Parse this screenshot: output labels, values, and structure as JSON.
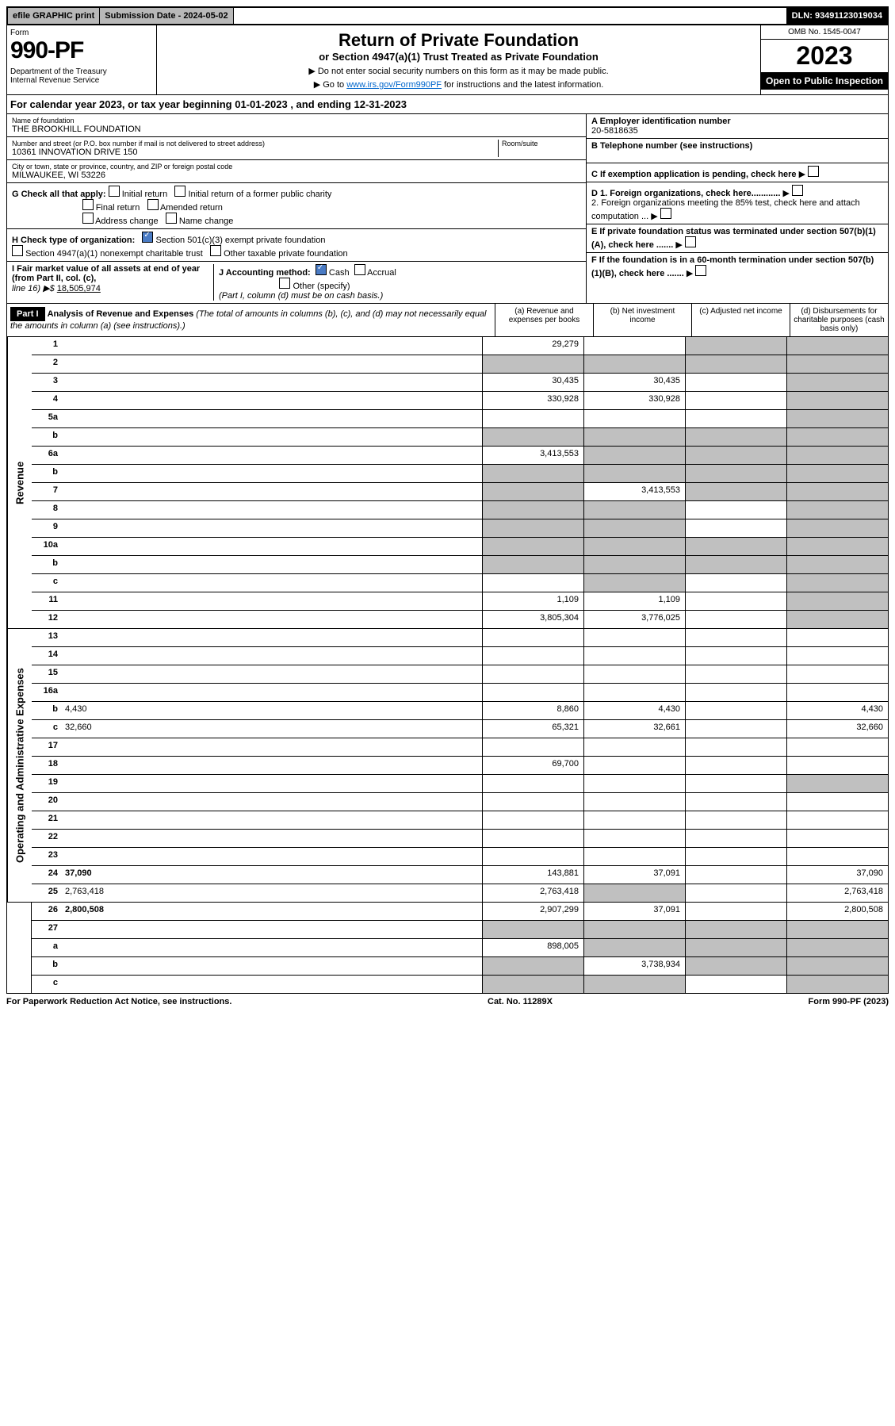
{
  "topbar": {
    "efile": "efile GRAPHIC print",
    "subdate": "Submission Date - 2024-05-02",
    "dln": "DLN: 93491123019034"
  },
  "header": {
    "form_label": "Form",
    "form_num": "990-PF",
    "dept": "Department of the Treasury\nInternal Revenue Service",
    "title": "Return of Private Foundation",
    "subtitle": "or Section 4947(a)(1) Trust Treated as Private Foundation",
    "instr1": "▶ Do not enter social security numbers on this form as it may be made public.",
    "instr2_pre": "▶ Go to ",
    "instr2_link": "www.irs.gov/Form990PF",
    "instr2_post": " for instructions and the latest information.",
    "omb": "OMB No. 1545-0047",
    "year": "2023",
    "open_pub": "Open to Public Inspection"
  },
  "calyear": "For calendar year 2023, or tax year beginning 01-01-2023              , and ending 12-31-2023",
  "info": {
    "name_label": "Name of foundation",
    "name": "THE BROOKHILL FOUNDATION",
    "addr_label": "Number and street (or P.O. box number if mail is not delivered to street address)",
    "addr": "10361 INNOVATION DRIVE 150",
    "room_label": "Room/suite",
    "city_label": "City or town, state or province, country, and ZIP or foreign postal code",
    "city": "MILWAUKEE, WI  53226",
    "a_label": "A Employer identification number",
    "a_val": "20-5818635",
    "b_label": "B Telephone number (see instructions)",
    "c_label": "C If exemption application is pending, check here",
    "d1": "D 1. Foreign organizations, check here............",
    "d2": "2. Foreign organizations meeting the 85% test, check here and attach computation ...",
    "e": "E  If private foundation status was terminated under section 507(b)(1)(A), check here .......",
    "f": "F  If the foundation is in a 60-month termination under section 507(b)(1)(B), check here .......",
    "g_label": "G Check all that apply:",
    "g_opts": [
      "Initial return",
      "Initial return of a former public charity",
      "Final return",
      "Amended return",
      "Address change",
      "Name change"
    ],
    "h_label": "H Check type of organization:",
    "h_opts": [
      "Section 501(c)(3) exempt private foundation",
      "Section 4947(a)(1) nonexempt charitable trust",
      "Other taxable private foundation"
    ],
    "i_label": "I Fair market value of all assets at end of year (from Part II, col. (c),",
    "i_line": "line 16) ▶$",
    "i_val": "18,505,974",
    "j_label": "J Accounting method:",
    "j_opts": [
      "Cash",
      "Accrual",
      "Other (specify)"
    ],
    "j_note": "(Part I, column (d) must be on cash basis.)"
  },
  "part1": {
    "label": "Part I",
    "title": "Analysis of Revenue and Expenses",
    "title_note": "(The total of amounts in columns (b), (c), and (d) may not necessarily equal the amounts in column (a) (see instructions).)",
    "col_a": "(a)   Revenue and expenses per books",
    "col_b": "(b)   Net investment income",
    "col_c": "(c)  Adjusted net income",
    "col_d": "(d)  Disbursements for charitable purposes (cash basis only)"
  },
  "sides": {
    "rev": "Revenue",
    "exp": "Operating and Administrative Expenses"
  },
  "lines": [
    {
      "n": "1",
      "d": "",
      "a": "29,279",
      "b": "",
      "c": "",
      "gc": true,
      "gd": true
    },
    {
      "n": "2",
      "d": "",
      "a": "",
      "b": "",
      "c": "",
      "ga": true,
      "gb": true,
      "gc": true,
      "gd": true
    },
    {
      "n": "3",
      "d": "",
      "a": "30,435",
      "b": "30,435",
      "c": "",
      "gd": true
    },
    {
      "n": "4",
      "d": "",
      "a": "330,928",
      "b": "330,928",
      "c": "",
      "gd": true
    },
    {
      "n": "5a",
      "d": "",
      "a": "",
      "b": "",
      "c": "",
      "gd": true
    },
    {
      "n": "b",
      "d": "",
      "a": "",
      "b": "",
      "c": "",
      "ga": true,
      "gb": true,
      "gc": true,
      "gd": true
    },
    {
      "n": "6a",
      "d": "",
      "a": "3,413,553",
      "b": "",
      "c": "",
      "gb": true,
      "gc": true,
      "gd": true
    },
    {
      "n": "b",
      "d": "",
      "a": "",
      "b": "",
      "c": "",
      "ga": true,
      "gb": true,
      "gc": true,
      "gd": true
    },
    {
      "n": "7",
      "d": "",
      "a": "",
      "b": "3,413,553",
      "c": "",
      "ga": true,
      "gc": true,
      "gd": true
    },
    {
      "n": "8",
      "d": "",
      "a": "",
      "b": "",
      "c": "",
      "ga": true,
      "gb": true,
      "gd": true
    },
    {
      "n": "9",
      "d": "",
      "a": "",
      "b": "",
      "c": "",
      "ga": true,
      "gb": true,
      "gd": true
    },
    {
      "n": "10a",
      "d": "",
      "a": "",
      "b": "",
      "c": "",
      "ga": true,
      "gb": true,
      "gc": true,
      "gd": true
    },
    {
      "n": "b",
      "d": "",
      "a": "",
      "b": "",
      "c": "",
      "ga": true,
      "gb": true,
      "gc": true,
      "gd": true
    },
    {
      "n": "c",
      "d": "",
      "a": "",
      "b": "",
      "c": "",
      "gb": true,
      "gd": true
    },
    {
      "n": "11",
      "d": "",
      "a": "1,109",
      "b": "1,109",
      "c": "",
      "gd": true
    },
    {
      "n": "12",
      "d": "",
      "bold": true,
      "a": "3,805,304",
      "b": "3,776,025",
      "c": "",
      "gd": true
    },
    {
      "n": "13",
      "d": "",
      "a": "",
      "b": "",
      "c": ""
    },
    {
      "n": "14",
      "d": "",
      "a": "",
      "b": "",
      "c": ""
    },
    {
      "n": "15",
      "d": "",
      "a": "",
      "b": "",
      "c": ""
    },
    {
      "n": "16a",
      "d": "",
      "a": "",
      "b": "",
      "c": ""
    },
    {
      "n": "b",
      "d": "4,430",
      "a": "8,860",
      "b": "4,430",
      "c": ""
    },
    {
      "n": "c",
      "d": "32,660",
      "a": "65,321",
      "b": "32,661",
      "c": ""
    },
    {
      "n": "17",
      "d": "",
      "a": "",
      "b": "",
      "c": ""
    },
    {
      "n": "18",
      "d": "",
      "a": "69,700",
      "b": "",
      "c": ""
    },
    {
      "n": "19",
      "d": "",
      "a": "",
      "b": "",
      "c": "",
      "gd": true
    },
    {
      "n": "20",
      "d": "",
      "a": "",
      "b": "",
      "c": ""
    },
    {
      "n": "21",
      "d": "",
      "a": "",
      "b": "",
      "c": ""
    },
    {
      "n": "22",
      "d": "",
      "a": "",
      "b": "",
      "c": ""
    },
    {
      "n": "23",
      "d": "",
      "a": "",
      "b": "",
      "c": ""
    },
    {
      "n": "24",
      "d": "37,090",
      "bold": true,
      "a": "143,881",
      "b": "37,091",
      "c": ""
    },
    {
      "n": "25",
      "d": "2,763,418",
      "a": "2,763,418",
      "b": "",
      "c": "",
      "gb": true
    },
    {
      "n": "26",
      "d": "2,800,508",
      "bold": true,
      "a": "2,907,299",
      "b": "37,091",
      "c": ""
    },
    {
      "n": "27",
      "d": "",
      "a": "",
      "b": "",
      "c": "",
      "ga": true,
      "gb": true,
      "gc": true,
      "gd": true
    },
    {
      "n": "a",
      "d": "",
      "bold": true,
      "a": "898,005",
      "b": "",
      "c": "",
      "gb": true,
      "gc": true,
      "gd": true
    },
    {
      "n": "b",
      "d": "",
      "bold": true,
      "a": "",
      "b": "3,738,934",
      "c": "",
      "ga": true,
      "gc": true,
      "gd": true
    },
    {
      "n": "c",
      "d": "",
      "bold": true,
      "a": "",
      "b": "",
      "c": "",
      "ga": true,
      "gb": true,
      "gd": true
    }
  ],
  "footer": {
    "left": "For Paperwork Reduction Act Notice, see instructions.",
    "mid": "Cat. No. 11289X",
    "right": "Form 990-PF (2023)"
  }
}
